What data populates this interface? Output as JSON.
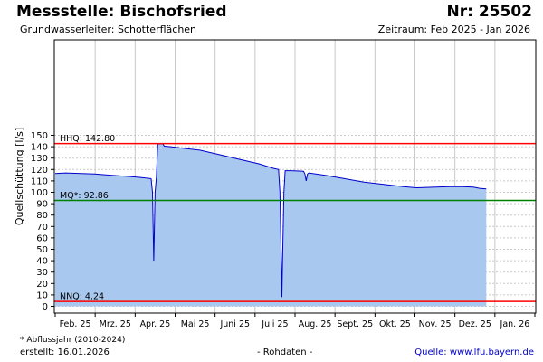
{
  "header": {
    "title": "Messstelle: Bischofsried",
    "nr": "Nr: 25502",
    "subtitle": "Grundwasserleiter:   Schotterflächen",
    "period": "Zeitraum: Feb 2025 - Jan 2026"
  },
  "footer": {
    "footnote": "* Abflussjahr (2010-2024)",
    "created_label": "erstellt:",
    "created_date": "16.01.2026",
    "rohdaten": "- Rohdaten -",
    "source_label": "Quelle:",
    "source_link": "www.lfu.bayern.de"
  },
  "chart_data": {
    "type": "area",
    "ylabel": "Quellschüttung [l/s]",
    "ylim": [
      0,
      150
    ],
    "yticks": [
      0,
      10,
      20,
      30,
      40,
      50,
      60,
      70,
      80,
      90,
      100,
      110,
      120,
      130,
      140,
      150
    ],
    "months": [
      "Feb. 25",
      "Mrz. 25",
      "Apr. 25",
      "Mai 25",
      "Juni 25",
      "Juli 25",
      "Aug. 25",
      "Sept. 25",
      "Okt. 25",
      "Nov. 25",
      "Dez. 25",
      "Jan. 26"
    ],
    "x_range_days": [
      0,
      365
    ],
    "grid": true,
    "series": [
      {
        "values": [
          [
            0,
            116.5
          ],
          [
            8,
            117
          ],
          [
            20,
            116.5
          ],
          [
            30,
            116
          ],
          [
            42,
            115
          ],
          [
            55,
            114
          ],
          [
            65,
            113
          ],
          [
            73,
            112
          ],
          [
            74,
            100
          ],
          [
            75,
            40
          ],
          [
            76,
            100
          ],
          [
            77,
            113
          ],
          [
            78,
            142.5
          ],
          [
            82,
            142.5
          ],
          [
            83,
            140.5
          ],
          [
            88,
            140
          ],
          [
            95,
            139
          ],
          [
            110,
            137
          ],
          [
            125,
            133
          ],
          [
            140,
            129
          ],
          [
            155,
            125
          ],
          [
            166,
            121
          ],
          [
            170,
            120
          ],
          [
            171,
            100
          ],
          [
            172,
            40
          ],
          [
            172.5,
            8
          ],
          [
            173,
            40
          ],
          [
            174,
            100
          ],
          [
            175,
            119
          ],
          [
            180,
            119
          ],
          [
            189,
            118.5
          ],
          [
            190,
            116
          ],
          [
            191,
            110
          ],
          [
            192,
            116
          ],
          [
            193,
            117
          ],
          [
            205,
            115
          ],
          [
            220,
            112
          ],
          [
            235,
            109
          ],
          [
            250,
            107
          ],
          [
            265,
            105
          ],
          [
            275,
            104
          ],
          [
            290,
            104.5
          ],
          [
            300,
            105
          ],
          [
            310,
            105
          ],
          [
            318,
            104.5
          ],
          [
            323,
            103.5
          ],
          [
            328,
            103
          ]
        ]
      }
    ],
    "reference_lines": [
      {
        "label": "HHQ: 142.80",
        "value": 142.8,
        "color": "#ff0000"
      },
      {
        "label": "MQ*: 92.86",
        "value": 92.86,
        "color": "#008000"
      },
      {
        "label": "NNQ: 4.24",
        "value": 4.24,
        "color": "#ff0000"
      }
    ],
    "colors": {
      "fill": "#a8c8f0",
      "line": "#0000cc",
      "grid": "#c8c8c8"
    }
  }
}
